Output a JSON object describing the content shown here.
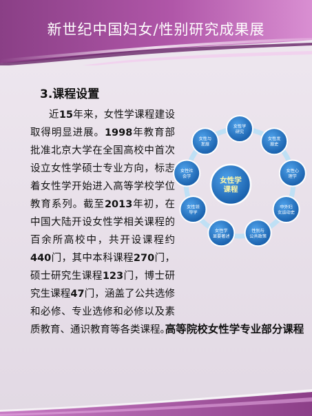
{
  "header": {
    "title": "新世纪中国妇女/性别研究成果展"
  },
  "section": {
    "heading": "3.课程设置"
  },
  "body": {
    "s1": "近",
    "n1": "15",
    "s2": "年来，女性学课程建设取得明显进展。",
    "n2": "1998",
    "s3": "年教育部批准北京大学在全国高校中首次设立女性学硕士专业方向，标志着女性学开始进入高等学校学位教育系列。截至",
    "n3": "2013",
    "s4": "年初，在中国大陆开设女性学相关课程的百余所高校中，共开设课程约",
    "n4": "440",
    "s5": "门，其中本科课程",
    "n5": "270",
    "s6": "门，硕士研究生课程",
    "n6": "123",
    "s7": "门，博士研究生课程",
    "n7": "47",
    "s8": "门，涵盖了公共选修和必修、专业选修和必修以及素质教育、通识教育等各类课程。"
  },
  "diagram": {
    "center": {
      "line1": "女性学",
      "line2": "课程"
    },
    "nodes": [
      {
        "line1": "女性学",
        "line2": "研究"
      },
      {
        "line1": "女性发",
        "line2": "展史"
      },
      {
        "line1": "女性心",
        "line2": "理学"
      },
      {
        "line1": "中外妇",
        "line2": "女运动史"
      },
      {
        "line1": "性别与",
        "line2": "公共政策"
      },
      {
        "line1": "女性学",
        "line2": "显要著述"
      },
      {
        "line1": "女性领",
        "line2": "导学"
      },
      {
        "line1": "女性社",
        "line2": "会学"
      },
      {
        "line1": "女性与",
        "line2": "发展"
      }
    ],
    "colors": {
      "node": "#1f6fc4",
      "center": "#1f6fc4",
      "ring": "#bfe0f5"
    }
  },
  "caption": {
    "text": "高等院校女性学专业部分课程"
  }
}
